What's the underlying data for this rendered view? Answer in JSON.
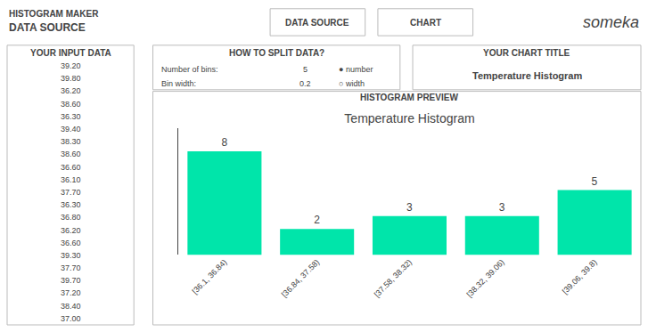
{
  "chart_data": {
    "type": "bar",
    "title": "Temperature Histogram",
    "subtitle": "HISTOGRAM PREVIEW",
    "categories": [
      "[36.1, 36.84)",
      "[36.84, 37.58)",
      "[37.58, 38.32)",
      "[38.32, 39.06)",
      "[39.06, 39.8)"
    ],
    "values": [
      8,
      2,
      3,
      3,
      5
    ],
    "color": "#00e5aa",
    "data_labels": true,
    "tick_labels": "x",
    "ylim": [
      0,
      9.8
    ],
    "annotations": [
      [
        "HISTOGRAM MAKER",
        "DATA SOURCE",
        "DATA SOURCE",
        "CHART",
        "someka"
      ],
      [
        "YOUR INPUT DATA",
        "39.20",
        "39.80",
        "36.20",
        "38.60",
        "36.30",
        "39.40",
        "38.30",
        "38.60",
        "36.60",
        "36.10",
        "37.70",
        "36.30",
        "36.80",
        "36.20",
        "36.60",
        "39.30",
        "37.70",
        "39.70",
        "37.20",
        "38.40",
        "37.00"
      ],
      [
        "HOW TO SPLIT DATA?",
        "Number of bins:",
        "5",
        "● number",
        "Bin width:",
        "0.2",
        "○ width"
      ],
      [
        "YOUR CHART TITLE",
        "Temperature Histogram"
      ]
    ]
  }
}
